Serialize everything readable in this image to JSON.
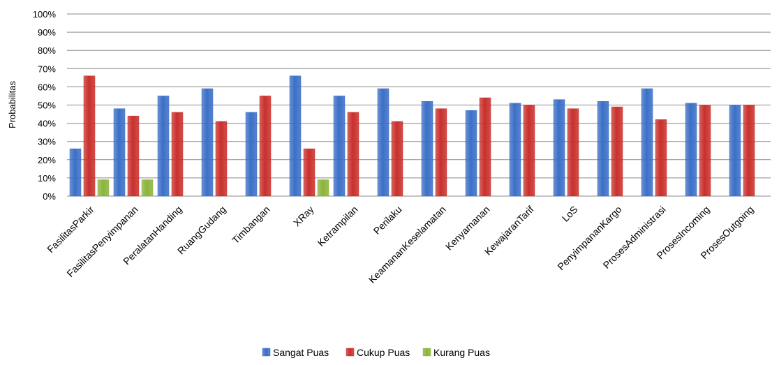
{
  "chart_data": {
    "type": "bar",
    "ylabel": "Probabilitas",
    "xlabel": "",
    "ylim": [
      0,
      100
    ],
    "yticks": [
      "0%",
      "10%",
      "20%",
      "30%",
      "40%",
      "50%",
      "60%",
      "70%",
      "80%",
      "90%",
      "100%"
    ],
    "grid": "horizontal",
    "legend_position": "bottom",
    "categories": [
      "FasilitasParkir",
      "FasilitasPenyimpanan",
      "PeralatanHanding",
      "RuangGudang",
      "Timbangan",
      "XRay",
      "Ketrampilan",
      "Perilaku",
      "KeamananKeselamatan",
      "Kenyamanan",
      "KewajaranTarif",
      "LoS",
      "PenyimpananKargo",
      "ProsesAdministrasi",
      "ProsesIncoming",
      "ProsesOutgoing"
    ],
    "series": [
      {
        "name": "Sangat Puas",
        "color": "#3b6fc7",
        "values": [
          26,
          48,
          55,
          59,
          46,
          66,
          55,
          59,
          52,
          47,
          51,
          53,
          52,
          59,
          51,
          50
        ]
      },
      {
        "name": "Cukup Puas",
        "color": "#c9302c",
        "values": [
          66,
          44,
          46,
          41,
          55,
          26,
          46,
          41,
          48,
          54,
          50,
          48,
          49,
          42,
          50,
          50
        ]
      },
      {
        "name": "Kurang Puas",
        "color": "#8cb43a",
        "values": [
          9,
          9,
          null,
          null,
          null,
          9,
          null,
          null,
          null,
          null,
          null,
          null,
          null,
          null,
          null,
          null
        ]
      }
    ]
  }
}
